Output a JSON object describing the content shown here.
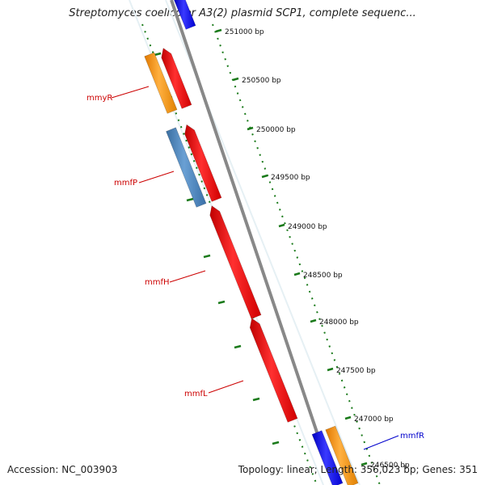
{
  "title": "Streptomyces coelicolor A3(2) plasmid SCP1, complete sequenc...",
  "accession": "Accession: NC_003903",
  "summary": "Topology: linear; Length: 356,023 bp; Genes: 351",
  "colors": {
    "backbone": "#888888",
    "tick": "#1a7a1a",
    "feature_red": "#ff1a1a",
    "feature_orange": "#ff9a1a",
    "feature_steel": "#4a86c0",
    "feature_blue": "#1a1aff",
    "label_red": "#cc0000",
    "label_blue": "#0000cc"
  },
  "scale": [
    {
      "label": "251000 bp"
    },
    {
      "label": "250500 bp"
    },
    {
      "label": "250000 bp"
    },
    {
      "label": "249500 bp"
    },
    {
      "label": "249000 bp"
    },
    {
      "label": "248500 bp"
    },
    {
      "label": "248000 bp"
    },
    {
      "label": "247500 bp"
    },
    {
      "label": "247000 bp"
    },
    {
      "label": "246500 bp"
    }
  ],
  "gene_labels": [
    "mmyR",
    "mmfP",
    "mmfH",
    "mmfL",
    "mmfR"
  ]
}
